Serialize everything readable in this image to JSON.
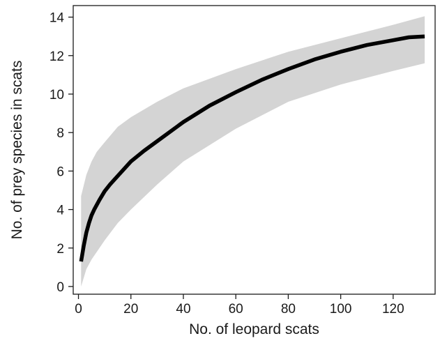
{
  "chart_data": {
    "type": "line",
    "title": "",
    "xlabel": "No. of leopard scats",
    "ylabel": "No. of prey species in scats",
    "xlim": [
      -2,
      136
    ],
    "ylim": [
      -0.4,
      14.6
    ],
    "x_ticks": [
      0,
      20,
      40,
      60,
      80,
      100,
      120
    ],
    "y_ticks": [
      0,
      2,
      4,
      6,
      8,
      10,
      12,
      14
    ],
    "grid": false,
    "legend": "none",
    "colors": {
      "line": "#000000",
      "band": "#d4d4d4",
      "axes": "#1a1a1a"
    },
    "series": [
      {
        "kind": "mean",
        "x": [
          1,
          2,
          3,
          4,
          5,
          6,
          8,
          10,
          12,
          15,
          20,
          25,
          30,
          40,
          50,
          60,
          70,
          80,
          90,
          100,
          110,
          120,
          126,
          132
        ],
        "y": [
          1.3,
          2.1,
          2.8,
          3.3,
          3.7,
          4.0,
          4.5,
          4.95,
          5.3,
          5.75,
          6.5,
          7.05,
          7.55,
          8.55,
          9.4,
          10.1,
          10.75,
          11.3,
          11.8,
          12.2,
          12.55,
          12.8,
          12.95,
          13.0
        ]
      },
      {
        "kind": "upper",
        "x": [
          1,
          3,
          5,
          7,
          10,
          15,
          20,
          30,
          40,
          60,
          80,
          100,
          120,
          132
        ],
        "y": [
          4.7,
          5.8,
          6.5,
          7.0,
          7.5,
          8.3,
          8.8,
          9.6,
          10.3,
          11.3,
          12.2,
          12.9,
          13.6,
          14.05
        ]
      },
      {
        "kind": "lower",
        "x": [
          1,
          3,
          5,
          8,
          10,
          15,
          20,
          30,
          40,
          60,
          80,
          100,
          120,
          132
        ],
        "y": [
          0.0,
          0.9,
          1.4,
          2.0,
          2.4,
          3.3,
          4.0,
          5.3,
          6.5,
          8.2,
          9.6,
          10.5,
          11.2,
          11.6
        ]
      }
    ]
  }
}
